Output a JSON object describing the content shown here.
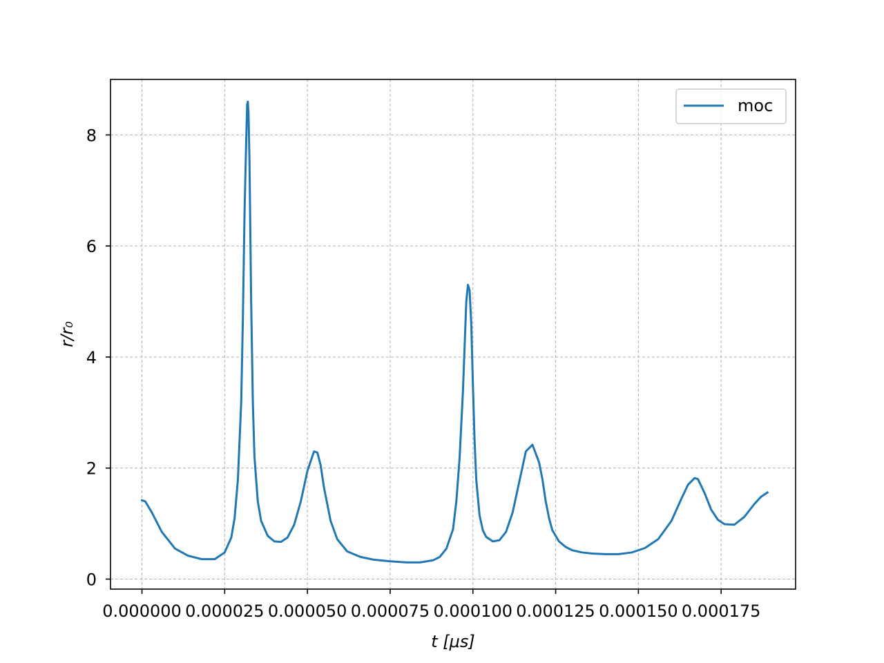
{
  "chart_data": {
    "type": "line",
    "xlabel": "t [μs]",
    "ylabel": "r/r₀",
    "xlim": [
      -9.5e-06,
      0.0001975
    ],
    "ylim": [
      -0.18,
      9.0
    ],
    "x_ticks": [
      0.0,
      2.5e-05,
      5e-05,
      7.5e-05,
      0.0001,
      0.000125,
      0.00015,
      0.000175
    ],
    "x_tick_labels": [
      "0.000000",
      "0.000025",
      "0.000050",
      "0.000075",
      "0.000100",
      "0.000125",
      "0.000150",
      "0.000175"
    ],
    "y_ticks": [
      0,
      2,
      4,
      6,
      8
    ],
    "y_tick_labels": [
      "0",
      "2",
      "4",
      "6",
      "8"
    ],
    "grid": true,
    "legend_position": "top-right",
    "series": [
      {
        "name": "moc",
        "color": "#1f77b4",
        "x": [
          0.0,
          1e-06,
          3e-06,
          6e-06,
          1e-05,
          1.4e-05,
          1.8e-05,
          2.2e-05,
          2.5e-05,
          2.7e-05,
          2.8e-05,
          2.9e-05,
          3e-05,
          3.05e-05,
          3.1e-05,
          3.15e-05,
          3.18e-05,
          3.2e-05,
          3.22e-05,
          3.25e-05,
          3.3e-05,
          3.35e-05,
          3.4e-05,
          3.5e-05,
          3.6e-05,
          3.8e-05,
          4e-05,
          4.2e-05,
          4.4e-05,
          4.6e-05,
          4.8e-05,
          5e-05,
          5.2e-05,
          5.3e-05,
          5.4e-05,
          5.5e-05,
          5.7e-05,
          5.9e-05,
          6.2e-05,
          6.6e-05,
          7e-05,
          7.5e-05,
          8e-05,
          8.4e-05,
          8.8e-05,
          9e-05,
          9.2e-05,
          9.4e-05,
          9.5e-05,
          9.6e-05,
          9.7e-05,
          9.75e-05,
          9.8e-05,
          9.85e-05,
          9.9e-05,
          9.95e-05,
          0.0001,
          0.0001005,
          0.000101,
          0.000102,
          0.000103,
          0.000104,
          0.000106,
          0.000108,
          0.00011,
          0.000112,
          0.000114,
          0.000116,
          0.000118,
          0.00012,
          0.000121,
          0.000122,
          0.000123,
          0.000124,
          0.000126,
          0.000128,
          0.00013,
          0.000133,
          0.000136,
          0.00014,
          0.000144,
          0.000148,
          0.000152,
          0.000156,
          0.00016,
          0.000163,
          0.000165,
          0.000167,
          0.000168,
          0.00017,
          0.000172,
          0.000174,
          0.000176,
          0.000179,
          0.000182,
          0.000185,
          0.000187,
          0.000189
        ],
        "y": [
          1.42,
          1.4,
          1.2,
          0.85,
          0.55,
          0.42,
          0.36,
          0.36,
          0.48,
          0.75,
          1.1,
          1.8,
          3.2,
          4.7,
          6.6,
          7.9,
          8.55,
          8.6,
          8.4,
          7.5,
          5.0,
          3.2,
          2.2,
          1.4,
          1.05,
          0.78,
          0.68,
          0.67,
          0.75,
          0.98,
          1.4,
          1.95,
          2.3,
          2.28,
          2.05,
          1.65,
          1.05,
          0.72,
          0.5,
          0.4,
          0.35,
          0.32,
          0.3,
          0.3,
          0.34,
          0.4,
          0.55,
          0.9,
          1.4,
          2.2,
          3.4,
          4.2,
          5.0,
          5.3,
          5.2,
          4.6,
          3.5,
          2.5,
          1.8,
          1.15,
          0.88,
          0.76,
          0.68,
          0.7,
          0.85,
          1.2,
          1.75,
          2.3,
          2.42,
          2.1,
          1.8,
          1.4,
          1.1,
          0.88,
          0.68,
          0.58,
          0.52,
          0.48,
          0.46,
          0.45,
          0.45,
          0.48,
          0.56,
          0.72,
          1.05,
          1.45,
          1.7,
          1.82,
          1.8,
          1.55,
          1.25,
          1.07,
          0.99,
          0.98,
          1.12,
          1.35,
          1.48,
          1.56
        ]
      }
    ]
  }
}
